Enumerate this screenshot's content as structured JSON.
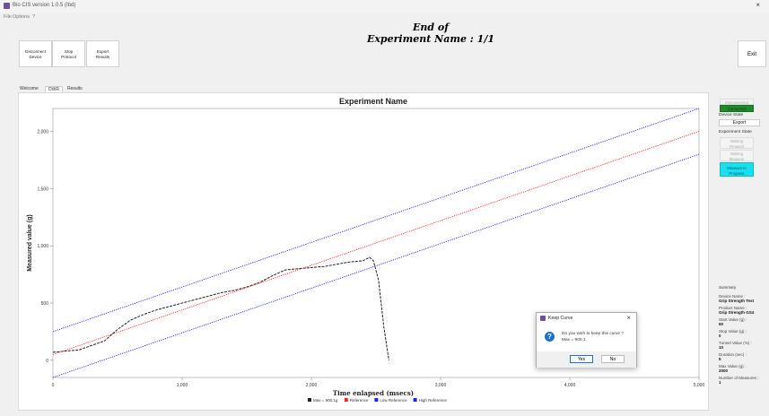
{
  "window": {
    "title": "Bio CIS version 1.0.5 (Ibd)",
    "close_glyph": "×"
  },
  "menu": {
    "items": [
      "File",
      "Options",
      "?"
    ]
  },
  "toolbar": {
    "disconnect": [
      "Disconnect",
      "Device"
    ],
    "stop": [
      "Stop",
      "Protocol"
    ],
    "export": [
      "Export",
      "Results"
    ],
    "exit": "Exit"
  },
  "header": {
    "line1": "End of",
    "line2": "Experiment Name : 1/1"
  },
  "tabs": [
    "Welcome",
    "DWR",
    "Results"
  ],
  "right_panel": {
    "device_state_title": "Device State",
    "not_connected": "Disconnected",
    "connected": "Connected",
    "export": "Export",
    "experiment_state_title": "Experiment State",
    "waiting_protocol": [
      "Waiting",
      "Protocol"
    ],
    "waiting_measure": [
      "Waiting",
      "Measure"
    ],
    "measure_in_progress": [
      "Measure In",
      "Progress"
    ],
    "summary_title": "Summary",
    "summary_items": [
      {
        "label": "Device Name :",
        "value": "Grip Strength Test"
      },
      {
        "label": "Product Name :",
        "value": "Grip Strength GS4"
      },
      {
        "label": "Start Value (g) :",
        "value": "50"
      },
      {
        "label": "Stop Value (g) :",
        "value": "0"
      },
      {
        "label": "Tunnel Value (%) :",
        "value": "10"
      },
      {
        "label": "Duration (sec) :",
        "value": "5"
      },
      {
        "label": "Max Value (g) :",
        "value": "2000"
      },
      {
        "label": "Number of Measures :",
        "value": "1"
      }
    ]
  },
  "dialog": {
    "title": "Keep Curve",
    "message_line1": "Do you wish to keep this curve ?",
    "message_line2": "Max = 900,1",
    "yes": "Yes",
    "no": "No",
    "close_glyph": "×",
    "question_glyph": "?"
  },
  "colors": {
    "reference": "#ff2020",
    "low_reference": "#2020ff",
    "high_reference": "#2020ff",
    "measure": "#222222",
    "connected": "#1f8a2a",
    "measure_in_progress": "#19e0ef"
  },
  "chart_data": {
    "type": "line",
    "title": "Experiment Name",
    "xlabel": "Time enlapsed (msecs)",
    "ylabel": "Measured value (g)",
    "xlim": [
      0,
      5000
    ],
    "ylim": [
      -150,
      2200
    ],
    "x_ticks": [
      0,
      1000,
      2000,
      3000,
      4000,
      5000
    ],
    "x_tick_labels": [
      "0",
      "1,000",
      "2,000",
      "3,000",
      "4,000",
      "5,000"
    ],
    "y_ticks": [
      0,
      500,
      1000,
      1500,
      2000
    ],
    "y_tick_labels": [
      "0",
      "500",
      "1,000",
      "1,500",
      "2,000"
    ],
    "grid": false,
    "legend_position": "bottom",
    "series": [
      {
        "name": "Max = 900,1g",
        "color": "#222222",
        "style": "dashed",
        "x": [
          0,
          100,
          200,
          300,
          400,
          500,
          600,
          700,
          800,
          900,
          1000,
          1100,
          1200,
          1300,
          1400,
          1500,
          1600,
          1700,
          1800,
          1900,
          2000,
          2100,
          2200,
          2300,
          2400,
          2450,
          2480,
          2520,
          2560,
          2600
        ],
        "y": [
          70,
          80,
          90,
          130,
          170,
          270,
          350,
          400,
          440,
          470,
          500,
          530,
          560,
          590,
          610,
          640,
          680,
          740,
          790,
          800,
          810,
          820,
          840,
          860,
          870,
          900,
          870,
          700,
          300,
          0
        ]
      },
      {
        "name": "Reference",
        "color": "#ff2020",
        "style": "dotted",
        "x": [
          0,
          5000
        ],
        "y": [
          50,
          2000
        ]
      },
      {
        "name": "Low Reference",
        "color": "#2020ff",
        "style": "dotted",
        "x": [
          0,
          5000
        ],
        "y": [
          -150,
          1800
        ]
      },
      {
        "name": "High Reference",
        "color": "#2020ff",
        "style": "dotted",
        "x": [
          0,
          5000
        ],
        "y": [
          250,
          2200
        ]
      }
    ]
  }
}
